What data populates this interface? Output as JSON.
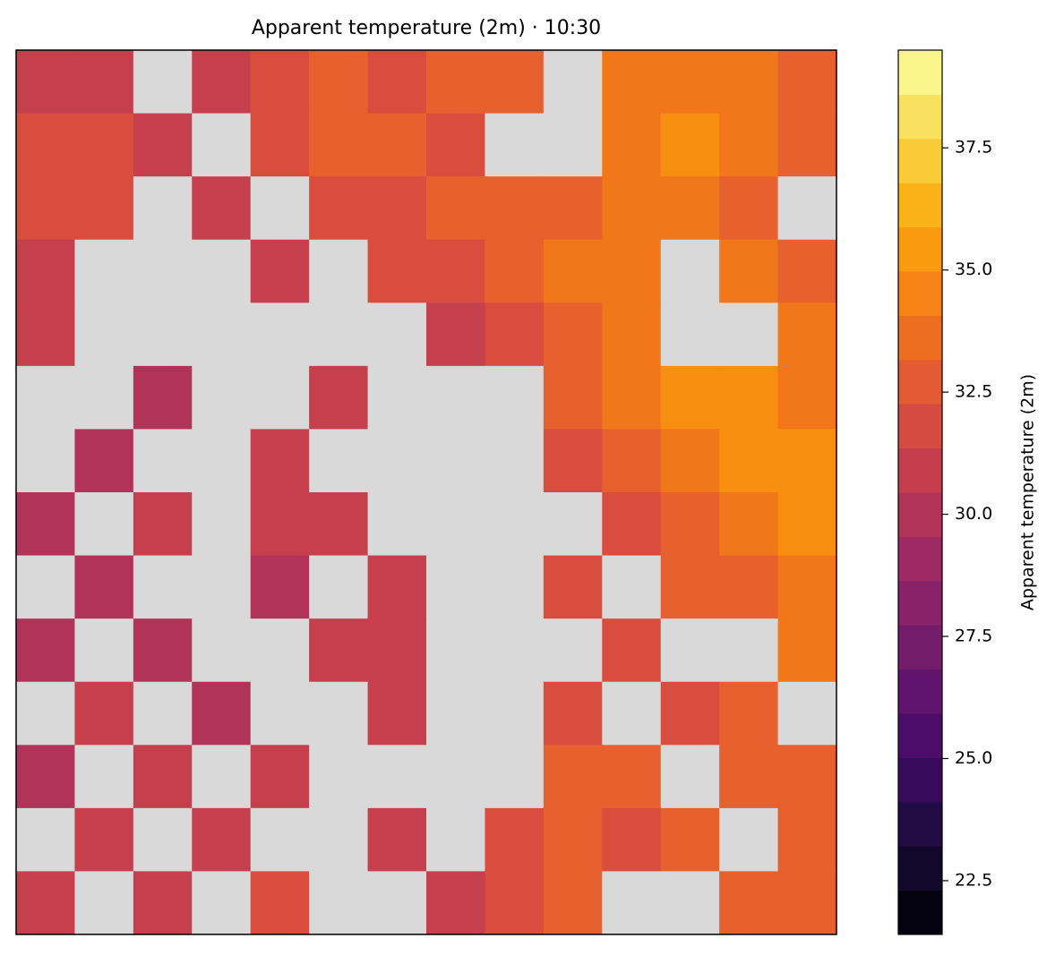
{
  "chart_data": {
    "type": "heatmap",
    "title": "Apparent temperature (2m) · 10:30",
    "colorbar_label": "Apparent temperature (2m)",
    "colormap": "inferno",
    "missing_color": "#d9d9d9",
    "clim": [
      21.4,
      39.5
    ],
    "cticks": [
      22.5,
      {
        "value": 25,
        "label": "25.0"
      },
      27.5,
      {
        "value": 30,
        "label": "30.0"
      },
      32.5,
      {
        "value": 35,
        "label": "35.0"
      },
      37.5
    ],
    "z": [
      [
        31,
        31,
        null,
        31,
        32,
        33,
        32,
        33,
        33,
        null,
        34,
        34,
        34,
        33
      ],
      [
        32,
        32,
        31,
        null,
        32,
        33,
        33,
        32,
        null,
        null,
        34,
        35,
        34,
        33
      ],
      [
        32,
        32,
        null,
        31,
        null,
        32,
        32,
        33,
        33,
        33,
        34,
        34,
        33,
        null
      ],
      [
        31,
        null,
        null,
        null,
        31,
        null,
        32,
        32,
        33,
        34,
        34,
        null,
        34,
        33
      ],
      [
        31,
        null,
        null,
        null,
        null,
        null,
        null,
        31,
        32,
        33,
        34,
        null,
        null,
        34
      ],
      [
        null,
        null,
        30,
        null,
        null,
        31,
        null,
        null,
        null,
        33,
        34,
        35,
        35,
        34
      ],
      [
        null,
        30,
        null,
        null,
        31,
        null,
        null,
        null,
        null,
        32,
        33,
        34,
        35,
        35
      ],
      [
        30,
        null,
        31,
        null,
        31,
        31,
        null,
        null,
        null,
        null,
        32,
        33,
        34,
        35
      ],
      [
        null,
        30,
        null,
        null,
        30,
        null,
        31,
        null,
        null,
        32,
        null,
        33,
        33,
        34
      ],
      [
        30,
        null,
        30,
        null,
        null,
        31,
        31,
        null,
        null,
        null,
        32,
        null,
        null,
        34
      ],
      [
        null,
        31,
        null,
        30,
        null,
        null,
        31,
        null,
        null,
        32,
        null,
        32,
        33,
        null
      ],
      [
        30,
        null,
        31,
        null,
        31,
        null,
        null,
        null,
        null,
        33,
        33,
        null,
        33,
        33
      ],
      [
        null,
        31,
        null,
        31,
        null,
        null,
        31,
        null,
        32,
        33,
        32,
        33,
        null,
        33
      ],
      [
        31,
        null,
        31,
        null,
        32,
        null,
        null,
        31,
        32,
        33,
        null,
        null,
        33,
        33
      ]
    ]
  }
}
